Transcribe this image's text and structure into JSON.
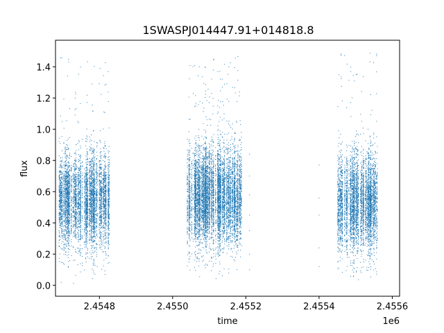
{
  "chart_data": {
    "type": "scatter",
    "title": "1SWASPJ014447.91+014818.8",
    "xlabel": "time",
    "ylabel": "flux",
    "x_offset_label": "1e6",
    "x_scale": 1000000,
    "xlim": [
      2454680,
      2455620
    ],
    "ylim": [
      -0.07,
      1.57
    ],
    "x_ticks": [
      2454800,
      2455000,
      2455200,
      2455400,
      2455600
    ],
    "x_tick_labels": [
      "2.4548",
      "2.4550",
      "2.4552",
      "2.4554",
      "2.4556"
    ],
    "y_ticks": [
      0.0,
      0.2,
      0.4,
      0.6,
      0.8,
      1.0,
      1.2,
      1.4
    ],
    "y_tick_labels": [
      "0.0",
      "0.2",
      "0.4",
      "0.6",
      "0.8",
      "1.0",
      "1.2",
      "1.4"
    ],
    "grid": false,
    "marker_color": "#1f77b4",
    "observing_seasons": [
      {
        "x_start": 2454690,
        "x_end": 2454828,
        "flux_median": 0.55,
        "flux_spread": 0.14,
        "flux_min": 0.0,
        "flux_max": 1.46,
        "approx_points": 5500
      },
      {
        "x_start": 2455040,
        "x_end": 2455190,
        "flux_median": 0.57,
        "flux_spread": 0.15,
        "flux_min": 0.0,
        "flux_max": 1.47,
        "approx_points": 7000
      },
      {
        "x_start": 2455450,
        "x_end": 2455560,
        "flux_median": 0.53,
        "flux_spread": 0.15,
        "flux_min": 0.0,
        "flux_max": 1.49,
        "approx_points": 4500
      }
    ],
    "sparse_points": [
      {
        "x": 2455210,
        "y": 0.84
      },
      {
        "x": 2455210,
        "y": 0.7
      },
      {
        "x": 2455210,
        "y": 0.58
      },
      {
        "x": 2455210,
        "y": 0.45
      },
      {
        "x": 2455210,
        "y": 0.35
      },
      {
        "x": 2455210,
        "y": 0.2
      },
      {
        "x": 2455210,
        "y": 0.1
      },
      {
        "x": 2455400,
        "y": 0.77
      },
      {
        "x": 2455400,
        "y": 0.56
      },
      {
        "x": 2455400,
        "y": 0.45
      },
      {
        "x": 2455400,
        "y": 0.24
      },
      {
        "x": 2455400,
        "y": 0.12
      }
    ]
  }
}
